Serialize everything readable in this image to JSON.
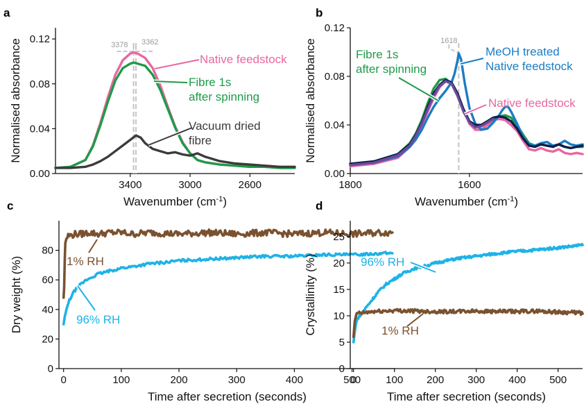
{
  "colors": {
    "native": "#e8689f",
    "fibre": "#1f9a49",
    "vacuum": "#3b3b3b",
    "meoh": "#1a7dc4",
    "navy": "#0d1f4a",
    "purple": "#6b4a9c",
    "rh96": "#1fb2e6",
    "rh1": "#7a5230",
    "guide": "#c8c8c8"
  },
  "chart_data": [
    {
      "panel": "a",
      "type": "line",
      "xlabel": "Wavenumber (cm",
      "xlabel_sup": "-1",
      "xlabel_end": ")",
      "ylabel": "Normalised absorbance",
      "xlim": [
        3900,
        2300
      ],
      "ylim": [
        0,
        0.13
      ],
      "x_reversed": true,
      "xticks": [
        3400,
        3000,
        2600
      ],
      "xtick_labels": [
        "3400",
        "3000",
        "2600"
      ],
      "yticks": [
        0,
        0.04,
        0.08,
        0.12
      ],
      "ytick_labels": [
        "0.00",
        "0.04",
        "0.08",
        "0.12"
      ],
      "guides": [
        3378,
        3362
      ],
      "guide_labels": [
        "3378",
        "3362"
      ],
      "series": [
        {
          "name": "Native feedstock",
          "color_key": "native",
          "x": [
            3900,
            3800,
            3700,
            3650,
            3600,
            3550,
            3500,
            3450,
            3400,
            3378,
            3350,
            3300,
            3250,
            3200,
            3150,
            3100,
            3050,
            3000,
            2950,
            2900,
            2800,
            2700,
            2600,
            2500,
            2400,
            2300
          ],
          "y": [
            0.005,
            0.006,
            0.012,
            0.025,
            0.045,
            0.068,
            0.088,
            0.101,
            0.107,
            0.108,
            0.107,
            0.103,
            0.094,
            0.079,
            0.06,
            0.042,
            0.028,
            0.018,
            0.012,
            0.01,
            0.008,
            0.007,
            0.006,
            0.006,
            0.005,
            0.005
          ]
        },
        {
          "name": "Fibre 1s after spinning",
          "color_key": "fibre",
          "x": [
            3900,
            3800,
            3700,
            3650,
            3600,
            3550,
            3500,
            3450,
            3400,
            3378,
            3350,
            3300,
            3250,
            3200,
            3150,
            3100,
            3050,
            3000,
            2950,
            2900,
            2800,
            2700,
            2600,
            2500,
            2400,
            2300
          ],
          "y": [
            0.005,
            0.006,
            0.012,
            0.024,
            0.043,
            0.064,
            0.083,
            0.094,
            0.098,
            0.099,
            0.098,
            0.096,
            0.088,
            0.075,
            0.058,
            0.041,
            0.027,
            0.018,
            0.012,
            0.01,
            0.008,
            0.007,
            0.006,
            0.006,
            0.005,
            0.005
          ]
        },
        {
          "name": "Vacuum dried fibre",
          "color_key": "vacuum",
          "x": [
            3900,
            3800,
            3700,
            3650,
            3600,
            3550,
            3500,
            3450,
            3400,
            3362,
            3330,
            3300,
            3250,
            3200,
            3150,
            3100,
            3050,
            3000,
            2950,
            2900,
            2850,
            2800,
            2700,
            2600,
            2500,
            2400,
            2300
          ],
          "y": [
            0.005,
            0.005,
            0.006,
            0.008,
            0.011,
            0.015,
            0.02,
            0.025,
            0.03,
            0.034,
            0.032,
            0.027,
            0.022,
            0.02,
            0.018,
            0.019,
            0.017,
            0.016,
            0.018,
            0.015,
            0.013,
            0.011,
            0.009,
            0.008,
            0.007,
            0.006,
            0.006
          ]
        }
      ],
      "annotations": [
        {
          "lines": [
            "Native feedstock"
          ],
          "color_key": "native"
        },
        {
          "lines": [
            "Fibre 1s",
            "after spinning"
          ],
          "color_key": "fibre"
        },
        {
          "lines": [
            "Vacuum dried",
            "fibre"
          ],
          "color_key": "vacuum"
        }
      ]
    },
    {
      "panel": "b",
      "type": "line",
      "xlabel": "Wavenumber (cm",
      "xlabel_sup": "-1",
      "xlabel_end": ")",
      "ylabel": "Normalised absorbance",
      "xlim": [
        1800,
        1410
      ],
      "ylim": [
        0,
        0.12
      ],
      "x_reversed": true,
      "xticks": [
        1800,
        1600
      ],
      "xtick_labels": [
        "1800",
        "1600"
      ],
      "yticks": [
        0,
        0.04,
        0.08,
        0.12
      ],
      "ytick_labels": [
        "0.00",
        "0.04",
        "0.08",
        "0.12"
      ],
      "guides": [
        1618
      ],
      "guide_labels": [
        "1618"
      ],
      "series": [
        {
          "name": "Native feedstock",
          "color_key": "native",
          "x": [
            1800,
            1760,
            1720,
            1700,
            1690,
            1680,
            1670,
            1660,
            1650,
            1640,
            1630,
            1620,
            1610,
            1600,
            1590,
            1580,
            1570,
            1560,
            1550,
            1540,
            1530,
            1520,
            1510,
            1500,
            1490,
            1480,
            1470,
            1460,
            1450,
            1440,
            1430,
            1420,
            1410
          ],
          "y": [
            0.006,
            0.008,
            0.013,
            0.022,
            0.03,
            0.04,
            0.051,
            0.062,
            0.071,
            0.076,
            0.075,
            0.066,
            0.053,
            0.041,
            0.036,
            0.036,
            0.04,
            0.044,
            0.045,
            0.044,
            0.04,
            0.035,
            0.027,
            0.02,
            0.019,
            0.021,
            0.019,
            0.018,
            0.02,
            0.017,
            0.016,
            0.017,
            0.016
          ]
        },
        {
          "name": "Fibre 1s after spinning",
          "color_key": "fibre",
          "x": [
            1800,
            1760,
            1720,
            1700,
            1690,
            1680,
            1670,
            1660,
            1650,
            1640,
            1630,
            1620,
            1610,
            1600,
            1590,
            1580,
            1570,
            1560,
            1550,
            1540,
            1530,
            1520,
            1510,
            1500,
            1490,
            1480,
            1470,
            1460,
            1450,
            1440,
            1430,
            1420,
            1410
          ],
          "y": [
            0.008,
            0.01,
            0.016,
            0.025,
            0.033,
            0.044,
            0.058,
            0.07,
            0.077,
            0.078,
            0.074,
            0.064,
            0.052,
            0.043,
            0.039,
            0.04,
            0.043,
            0.046,
            0.047,
            0.048,
            0.046,
            0.04,
            0.032,
            0.025,
            0.023,
            0.024,
            0.023,
            0.022,
            0.024,
            0.022,
            0.021,
            0.022,
            0.022
          ]
        },
        {
          "name": "MeOH treated Native feedstock",
          "color_key": "meoh",
          "x": [
            1800,
            1760,
            1720,
            1700,
            1690,
            1680,
            1670,
            1660,
            1650,
            1640,
            1630,
            1625,
            1620,
            1618,
            1614,
            1608,
            1600,
            1590,
            1580,
            1570,
            1560,
            1550,
            1545,
            1540,
            1535,
            1530,
            1520,
            1510,
            1500,
            1490,
            1480,
            1470,
            1460,
            1450,
            1440,
            1430,
            1420,
            1410
          ],
          "y": [
            0.007,
            0.009,
            0.014,
            0.022,
            0.028,
            0.036,
            0.046,
            0.055,
            0.062,
            0.068,
            0.075,
            0.082,
            0.093,
            0.099,
            0.094,
            0.075,
            0.054,
            0.041,
            0.036,
            0.037,
            0.042,
            0.048,
            0.052,
            0.055,
            0.055,
            0.051,
            0.041,
            0.03,
            0.024,
            0.023,
            0.025,
            0.026,
            0.023,
            0.024,
            0.027,
            0.024,
            0.023,
            0.024
          ]
        },
        {
          "name": "",
          "color_key": "navy",
          "x": [
            1800,
            1760,
            1720,
            1700,
            1690,
            1680,
            1670,
            1660,
            1650,
            1640,
            1630,
            1620,
            1610,
            1600,
            1590,
            1580,
            1570,
            1560,
            1550,
            1540,
            1530,
            1520,
            1510,
            1500,
            1490,
            1480,
            1470,
            1460,
            1450,
            1440,
            1430,
            1420,
            1410
          ],
          "y": [
            0.008,
            0.01,
            0.016,
            0.024,
            0.032,
            0.042,
            0.055,
            0.066,
            0.073,
            0.077,
            0.075,
            0.066,
            0.053,
            0.043,
            0.04,
            0.04,
            0.043,
            0.046,
            0.047,
            0.046,
            0.043,
            0.037,
            0.029,
            0.023,
            0.022,
            0.024,
            0.023,
            0.022,
            0.024,
            0.022,
            0.021,
            0.022,
            0.023
          ]
        },
        {
          "name": "",
          "color_key": "purple",
          "x": [
            1800,
            1760,
            1720,
            1700,
            1690,
            1680,
            1670,
            1660,
            1650,
            1640,
            1630,
            1620,
            1610,
            1600,
            1590,
            1580,
            1570,
            1560
          ],
          "y": [
            0.007,
            0.009,
            0.015,
            0.023,
            0.031,
            0.041,
            0.053,
            0.064,
            0.072,
            0.076,
            0.074,
            0.064,
            0.051,
            0.042,
            0.038,
            0.039,
            0.042,
            0.045
          ]
        }
      ],
      "annotations": [
        {
          "lines": [
            "Fibre 1s",
            "after spinning"
          ],
          "color_key": "fibre"
        },
        {
          "lines": [
            "MeOH treated",
            "Native feedstock"
          ],
          "color_key": "meoh"
        },
        {
          "lines": [
            "Native feedstock"
          ],
          "color_key": "native"
        }
      ]
    },
    {
      "panel": "c",
      "type": "line",
      "xlabel": "Time after secretion (seconds)",
      "ylabel": "Dry weight (%)",
      "xlim": [
        -8,
        575
      ],
      "ylim": [
        0,
        100
      ],
      "xticks": [
        0,
        100,
        200,
        300,
        400,
        500
      ],
      "xtick_labels": [
        "0",
        "100",
        "200",
        "300",
        "400",
        "500"
      ],
      "yticks": [
        0,
        20,
        40,
        60,
        80
      ],
      "ytick_labels": [
        "0",
        "20",
        "40",
        "60",
        "80"
      ],
      "series": [
        {
          "name": "1% RH",
          "color_key": "rh1",
          "x": [
            0,
            1,
            2,
            3,
            5,
            8,
            12,
            20,
            30,
            45,
            60,
            80,
            100,
            120,
            150,
            200,
            250,
            300,
            350,
            400,
            450,
            500,
            550,
            570
          ],
          "y": [
            48,
            55,
            72,
            85,
            88,
            90,
            90,
            91,
            91,
            92,
            91,
            92,
            92,
            91,
            92,
            91,
            92,
            91,
            92,
            91,
            92,
            91,
            92,
            92
          ]
        },
        {
          "name": "96% RH",
          "color_key": "rh96",
          "x": [
            0,
            2,
            5,
            10,
            15,
            20,
            30,
            40,
            50,
            60,
            80,
            100,
            120,
            150,
            180,
            200,
            250,
            300,
            350,
            400,
            450,
            500,
            550,
            570
          ],
          "y": [
            30,
            35,
            40,
            46,
            50,
            53,
            57,
            60,
            62,
            64,
            66,
            68,
            69,
            71,
            72,
            73,
            74,
            75,
            76,
            76,
            77,
            77,
            78,
            78
          ]
        }
      ],
      "annotations": [
        {
          "lines": [
            "1% RH"
          ],
          "color_key": "rh1"
        },
        {
          "lines": [
            "96% RH"
          ],
          "color_key": "rh96"
        }
      ]
    },
    {
      "panel": "d",
      "type": "line",
      "xlabel": "Time after secretion (seconds)",
      "ylabel": "Crystallinity (%)",
      "xlim": [
        -8,
        560
      ],
      "ylim": [
        0,
        28
      ],
      "xticks": [
        0,
        100,
        200,
        300,
        400,
        500
      ],
      "xtick_labels": [
        "0",
        "100",
        "200",
        "300",
        "400",
        "500"
      ],
      "yticks": [
        0,
        5,
        10,
        15,
        20,
        25
      ],
      "ytick_labels": [
        "0",
        "5",
        "10",
        "15",
        "20",
        "25"
      ],
      "series": [
        {
          "name": "96% RH",
          "color_key": "rh96",
          "x": [
            0,
            3,
            6,
            10,
            15,
            20,
            30,
            40,
            50,
            60,
            80,
            100,
            120,
            150,
            180,
            200,
            250,
            300,
            350,
            400,
            450,
            500,
            550,
            560
          ],
          "y": [
            5,
            7,
            8.5,
            9.5,
            10,
            10.5,
            11.5,
            12.5,
            13.5,
            14.5,
            16,
            17,
            18,
            19,
            19.5,
            20,
            20.8,
            21.3,
            21.8,
            22.2,
            22.5,
            22.9,
            23.3,
            23.4
          ]
        },
        {
          "name": "1% RH",
          "color_key": "rh1",
          "x": [
            0,
            3,
            6,
            10,
            20,
            30,
            50,
            80,
            100,
            150,
            200,
            250,
            300,
            350,
            400,
            450,
            500,
            550,
            560
          ],
          "y": [
            6,
            9,
            10,
            10.5,
            10.5,
            10.6,
            10.8,
            10.9,
            11,
            10.9,
            10.8,
            10.8,
            10.9,
            10.8,
            10.8,
            10.9,
            10.7,
            10.6,
            10.4
          ]
        }
      ],
      "annotations": [
        {
          "lines": [
            "96% RH"
          ],
          "color_key": "rh96"
        },
        {
          "lines": [
            "1% RH"
          ],
          "color_key": "rh1"
        }
      ]
    }
  ]
}
